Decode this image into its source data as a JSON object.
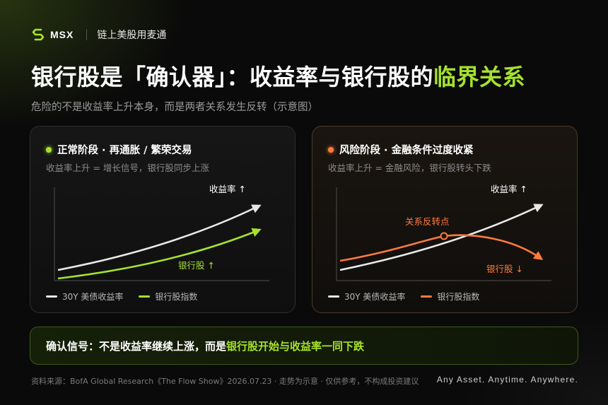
{
  "header": {
    "logo_text": "MSX",
    "tagline": "链上美股用麦通"
  },
  "title": {
    "main": "银行股是「确认器」：收益率与银行股的",
    "accent": "临界关系"
  },
  "subtitle": "危险的不是收益率上升本身，而是两者关系发生反转（示意图）",
  "colors": {
    "accent_green": "#a6e22e",
    "accent_orange": "#ff7a3d",
    "yield_line": "#e8e8e8"
  },
  "cards": [
    {
      "title": "正常阶段 · 再通胀 / 繁荣交易",
      "description": "收益率上升 = 增长信号，银行股同步上涨",
      "yield_label": "收益率 ↑",
      "bank_label": "银行股 ↑",
      "legend_yield": "30Y 美债收益率",
      "legend_bank": "银行股指数"
    },
    {
      "title": "风险阶段 · 金融条件过度收紧",
      "description": "收益率上升 = 金融风险，银行股转头下跌",
      "yield_label": "收益率 ↑",
      "bank_label": "银行股 ↓",
      "turn_label": "关系反转点",
      "legend_yield": "30Y 美债收益率",
      "legend_bank": "银行股指数"
    }
  ],
  "signal": {
    "lead": "确认信号：不是收益率继续上涨，而是",
    "accent": "银行股开始与收益率一同下跌"
  },
  "footer": {
    "source": "资料来源：BofA Global Research《The Flow Show》2026.07.23 · 走势为示意 · 仅供参考，不构成投资建议",
    "slogan": "Any Asset. Anytime. Anywhere."
  }
}
